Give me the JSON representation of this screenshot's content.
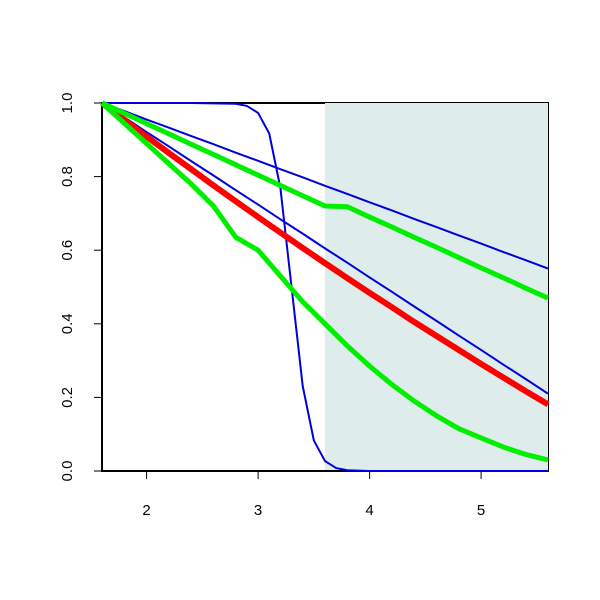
{
  "chart_data": {
    "type": "line",
    "xlim": [
      1.6,
      5.6
    ],
    "ylim": [
      0,
      1
    ],
    "xticks": [
      2,
      3,
      4,
      5
    ],
    "yticks": [
      {
        "value": 0,
        "label": "0.0"
      },
      {
        "value": 0.2,
        "label": "0.2"
      },
      {
        "value": 0.4,
        "label": "0.4"
      },
      {
        "value": 0.6,
        "label": "0.6"
      },
      {
        "value": 0.8,
        "label": "0.8"
      },
      {
        "value": 1,
        "label": "1.0"
      }
    ],
    "shaded_region": {
      "xmin": 3.6,
      "xmax": 5.6,
      "color": "#deecec"
    },
    "series": [
      {
        "color": "#0000dd",
        "line_width": 2,
        "x": [
          1.6,
          1.8,
          2.0,
          2.2,
          2.4,
          2.6,
          2.8,
          3.0,
          3.2,
          3.4,
          3.6,
          3.8,
          4.0,
          4.2,
          4.4,
          4.6,
          4.8,
          5.0,
          5.2,
          5.4,
          5.6
        ],
        "values": [
          1,
          0.978,
          0.955,
          0.933,
          0.91,
          0.888,
          0.865,
          0.843,
          0.82,
          0.798,
          0.775,
          0.753,
          0.73,
          0.708,
          0.685,
          0.663,
          0.64,
          0.618,
          0.595,
          0.573,
          0.55
        ]
      },
      {
        "color": "#0000dd",
        "line_width": 2,
        "x": [
          1.6,
          1.8,
          2.0,
          2.2,
          2.4,
          2.6,
          2.8,
          3.0,
          3.2,
          3.4,
          3.6,
          3.8,
          4.0,
          4.2,
          4.4,
          4.6,
          4.8,
          5.0,
          5.2,
          5.4,
          5.6
        ],
        "values": [
          1,
          0.961,
          0.921,
          0.882,
          0.842,
          0.803,
          0.763,
          0.724,
          0.684,
          0.645,
          0.605,
          0.566,
          0.526,
          0.487,
          0.447,
          0.408,
          0.368,
          0.329,
          0.289,
          0.25,
          0.21
        ]
      },
      {
        "color": "#0000dd",
        "line_width": 2,
        "x": [
          1.6,
          2.0,
          2.4,
          2.8,
          2.9,
          3.0,
          3.1,
          3.2,
          3.3,
          3.4,
          3.5,
          3.6,
          3.7,
          3.8,
          4.0,
          4.4,
          5.0,
          5.6
        ],
        "values": [
          1,
          1,
          1,
          0.998,
          0.992,
          0.973,
          0.917,
          0.769,
          0.5,
          0.231,
          0.083,
          0.027,
          0.008,
          0.002,
          0,
          0,
          0,
          0
        ]
      },
      {
        "color": "#ff0000",
        "line_width": 6,
        "x": [
          1.6,
          1.8,
          2.0,
          2.2,
          2.4,
          2.6,
          2.8,
          3.0,
          3.2,
          3.4,
          3.6,
          3.8,
          4.0,
          4.2,
          4.4,
          4.6,
          4.8,
          5.0,
          5.2,
          5.4,
          5.6
        ],
        "values": [
          1,
          0.954,
          0.909,
          0.864,
          0.82,
          0.776,
          0.733,
          0.69,
          0.648,
          0.606,
          0.565,
          0.524,
          0.484,
          0.445,
          0.405,
          0.367,
          0.329,
          0.291,
          0.254,
          0.217,
          0.181
        ]
      },
      {
        "color": "#00ee00",
        "line_width": 5,
        "x": [
          1.6,
          1.8,
          2.0,
          2.2,
          2.4,
          2.6,
          2.8,
          3.0,
          3.2,
          3.4,
          3.6,
          3.8,
          4.0,
          4.2,
          4.4,
          4.6,
          4.8,
          5.0,
          5.2,
          5.4,
          5.6
        ],
        "values": [
          1,
          0.972,
          0.944,
          0.916,
          0.888,
          0.86,
          0.832,
          0.804,
          0.776,
          0.748,
          0.72,
          0.718,
          0.69,
          0.663,
          0.635,
          0.608,
          0.58,
          0.552,
          0.525,
          0.497,
          0.47
        ]
      },
      {
        "color": "#00ee00",
        "line_width": 5,
        "x": [
          1.6,
          1.8,
          2.0,
          2.2,
          2.4,
          2.6,
          2.8,
          3.0,
          3.2,
          3.4,
          3.6,
          3.8,
          4.0,
          4.2,
          4.4,
          4.6,
          4.8,
          5.0,
          5.2,
          5.4,
          5.6
        ],
        "values": [
          1,
          0.945,
          0.89,
          0.835,
          0.78,
          0.72,
          0.635,
          0.6,
          0.53,
          0.46,
          0.4,
          0.34,
          0.285,
          0.235,
          0.19,
          0.15,
          0.115,
          0.09,
          0.065,
          0.045,
          0.03
        ]
      }
    ]
  }
}
